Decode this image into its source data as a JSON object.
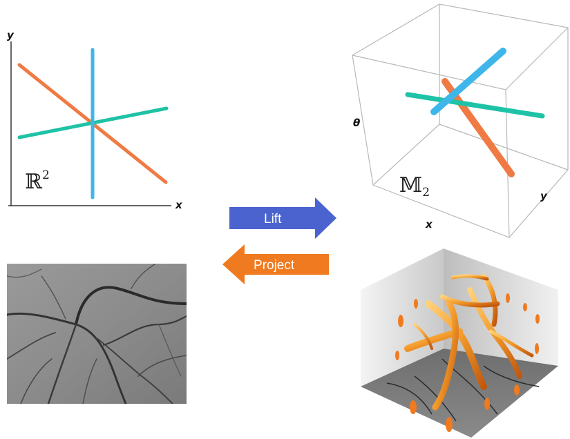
{
  "plane": {
    "y_label": "y",
    "x_label": "x",
    "space_symbol": "ℝ",
    "space_superscript": "2"
  },
  "lifted": {
    "theta_label": "θ",
    "x_label": "x",
    "y_label": "y",
    "space_symbol": "𝕄",
    "space_subscript": "2"
  },
  "arrows": {
    "lift_label": "Lift",
    "project_label": "Project"
  },
  "colors": {
    "orange": "#f07a43",
    "cyan": "#3fb6ea",
    "teal": "#1ec2a6",
    "lift_blue": "#4a63cf",
    "project_orange": "#f07a1f"
  }
}
